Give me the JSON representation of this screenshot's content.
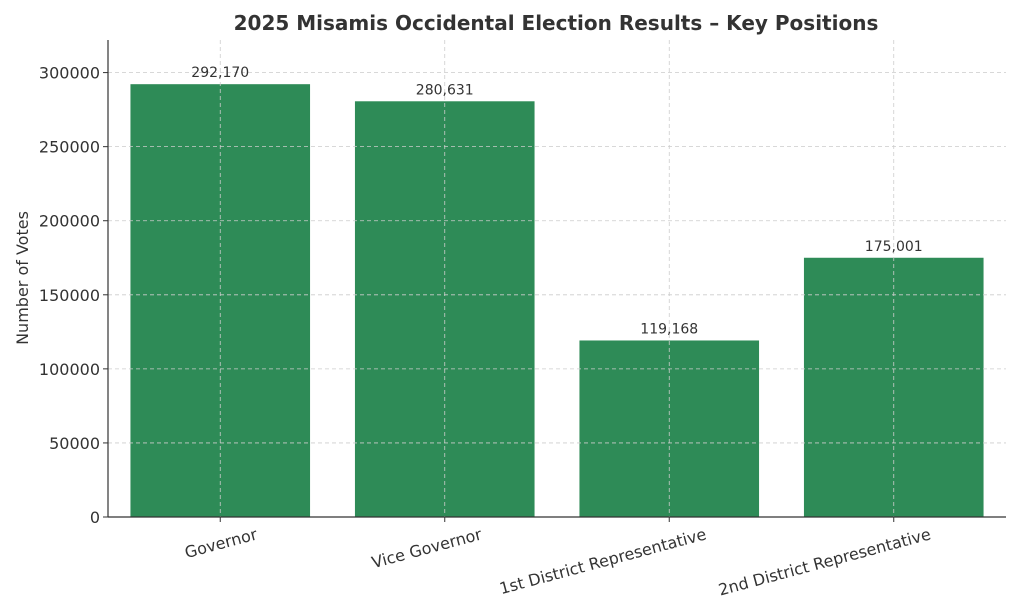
{
  "chart_data": {
    "type": "bar",
    "title": "2025 Misamis Occidental Election Results – Key Positions",
    "xlabel": "",
    "ylabel": "Number of Votes",
    "categories": [
      "Governor",
      "Vice Governor",
      "1st District Representative",
      "2nd District Representative"
    ],
    "values": [
      292170,
      280631,
      119168,
      175001
    ],
    "data_labels": [
      "292,170",
      "280,631",
      "119,168",
      "175,001"
    ],
    "ylim": [
      0,
      322000
    ],
    "yticks": [
      0,
      50000,
      100000,
      150000,
      200000,
      250000,
      300000
    ],
    "ytick_labels": [
      "0",
      "50000",
      "100000",
      "150000",
      "200000",
      "250000",
      "300000"
    ],
    "grid": true,
    "bar_color": "#2e8b57",
    "legend": null
  }
}
